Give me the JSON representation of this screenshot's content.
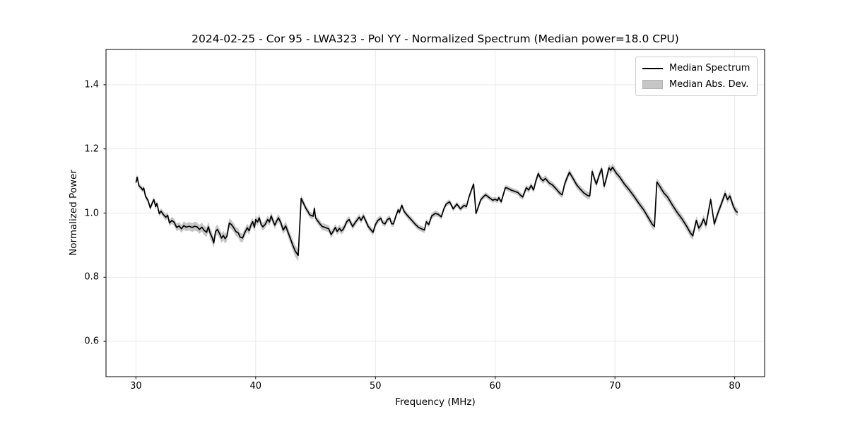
{
  "title": "2024-02-25 - Cor 95 - LWA323 - Pol YY - Normalized Spectrum (Median power=18.0 CPU)",
  "axes": {
    "xlabel": "Frequency (MHz)",
    "ylabel": "Normalized Power"
  },
  "legend": {
    "items": [
      {
        "label": "Median Spectrum",
        "type": "line",
        "color": "#000000"
      },
      {
        "label": "Median Abs. Dev.",
        "type": "patch",
        "color": "#c6c6c6"
      }
    ]
  },
  "colors": {
    "line": "#000000",
    "band": "#c6c6c6",
    "grid": "#e7e7e7",
    "spine": "#000000",
    "background": "#ffffff"
  },
  "chart_data": {
    "type": "line",
    "title": "2024-02-25 - Cor 95 - LWA323 - Pol YY - Normalized Spectrum (Median power=18.0 CPU)",
    "xlabel": "Frequency (MHz)",
    "ylabel": "Normalized Power",
    "xlim": [
      27.5,
      82.5
    ],
    "ylim": [
      0.49,
      1.51
    ],
    "xticks": [
      30,
      40,
      50,
      60,
      70,
      80
    ],
    "yticks": [
      0.6,
      0.8,
      1.0,
      1.2,
      1.4
    ],
    "xtick_labels": [
      "30",
      "40",
      "50",
      "60",
      "70",
      "80"
    ],
    "ytick_labels": [
      "0.6",
      "0.8",
      "1.0",
      "1.2",
      "1.4"
    ],
    "grid": true,
    "legend_position": "upper right",
    "series": [
      {
        "name": "Median Spectrum",
        "band_name": "Median Abs. Dev.",
        "frequency_mhz": [
          30.0,
          30.1,
          30.25,
          30.45,
          30.55,
          30.65,
          30.8,
          31.0,
          31.2,
          31.35,
          31.5,
          31.65,
          31.75,
          31.95,
          32.1,
          32.3,
          32.5,
          32.65,
          32.8,
          33.0,
          33.2,
          33.4,
          33.6,
          33.8,
          34.0,
          34.2,
          34.45,
          34.7,
          34.9,
          35.1,
          35.3,
          35.5,
          35.7,
          35.9,
          36.05,
          36.2,
          36.35,
          36.5,
          36.65,
          36.8,
          37.0,
          37.15,
          37.3,
          37.45,
          37.6,
          37.8,
          37.95,
          38.15,
          38.35,
          38.55,
          38.7,
          38.9,
          39.1,
          39.3,
          39.45,
          39.6,
          39.75,
          39.9,
          40.0,
          40.15,
          40.3,
          40.45,
          40.6,
          40.8,
          41.0,
          41.15,
          41.3,
          41.45,
          41.6,
          41.75,
          41.9,
          42.1,
          42.3,
          42.5,
          42.7,
          42.9,
          43.1,
          43.3,
          43.55,
          43.65,
          43.8,
          44.0,
          44.2,
          44.35,
          44.5,
          44.65,
          44.8,
          44.9,
          45.0,
          45.15,
          45.35,
          45.55,
          45.75,
          45.95,
          46.1,
          46.3,
          46.5,
          46.65,
          46.8,
          47.0,
          47.15,
          47.3,
          47.45,
          47.6,
          47.8,
          48.0,
          48.1,
          48.3,
          48.5,
          48.65,
          48.8,
          49.0,
          49.2,
          49.4,
          49.6,
          49.8,
          50.0,
          50.2,
          50.45,
          50.6,
          50.8,
          51.0,
          51.2,
          51.35,
          51.5,
          51.7,
          51.9,
          52.0,
          52.2,
          52.4,
          52.7,
          53.0,
          53.3,
          53.6,
          53.9,
          54.1,
          54.25,
          54.45,
          54.7,
          55.0,
          55.25,
          55.5,
          55.7,
          55.9,
          56.2,
          56.5,
          56.8,
          57.1,
          57.4,
          57.6,
          57.8,
          58.0,
          58.2,
          58.4,
          58.6,
          58.8,
          59.0,
          59.2,
          59.5,
          59.8,
          60.0,
          60.2,
          60.3,
          60.5,
          60.7,
          60.85,
          61.0,
          61.3,
          61.6,
          61.9,
          62.1,
          62.3,
          62.6,
          62.8,
          63.0,
          63.2,
          63.4,
          63.6,
          63.8,
          64.0,
          64.2,
          64.5,
          64.8,
          65.1,
          65.4,
          65.6,
          65.8,
          66.0,
          66.2,
          66.5,
          66.8,
          67.1,
          67.4,
          67.7,
          67.9,
          68.1,
          68.3,
          68.45,
          68.7,
          68.9,
          69.1,
          69.3,
          69.5,
          69.65,
          69.8,
          70.1,
          70.4,
          70.8,
          71.2,
          71.6,
          72.0,
          72.4,
          72.8,
          73.1,
          73.3,
          73.5,
          73.8,
          74.1,
          74.4,
          74.8,
          75.2,
          75.6,
          76.0,
          76.3,
          76.5,
          76.8,
          77.0,
          77.2,
          77.4,
          77.6,
          78.0,
          78.3,
          78.6,
          78.9,
          79.2,
          79.4,
          79.6,
          79.9,
          80.1,
          80.25
        ],
        "median_power": [
          1.095,
          1.112,
          1.085,
          1.078,
          1.072,
          1.078,
          1.052,
          1.04,
          1.016,
          1.03,
          1.042,
          1.02,
          1.03,
          0.998,
          1.006,
          0.995,
          0.987,
          0.993,
          0.969,
          0.977,
          0.971,
          0.955,
          0.96,
          0.951,
          0.961,
          0.956,
          0.959,
          0.955,
          0.959,
          0.957,
          0.949,
          0.956,
          0.946,
          0.94,
          0.957,
          0.937,
          0.925,
          0.907,
          0.943,
          0.949,
          0.935,
          0.922,
          0.93,
          0.92,
          0.928,
          0.969,
          0.965,
          0.955,
          0.942,
          0.938,
          0.925,
          0.922,
          0.94,
          0.954,
          0.945,
          0.962,
          0.973,
          0.955,
          0.98,
          0.972,
          0.985,
          0.965,
          0.957,
          0.965,
          0.98,
          0.972,
          0.991,
          0.975,
          0.962,
          0.975,
          0.985,
          0.97,
          0.947,
          0.96,
          0.94,
          0.92,
          0.9,
          0.882,
          0.868,
          0.94,
          1.046,
          1.03,
          1.014,
          1.006,
          0.995,
          0.992,
          0.99,
          1.015,
          0.985,
          0.977,
          0.967,
          0.958,
          0.956,
          0.953,
          0.951,
          0.933,
          0.945,
          0.955,
          0.943,
          0.952,
          0.944,
          0.949,
          0.96,
          0.973,
          0.98,
          0.965,
          0.958,
          0.97,
          0.98,
          0.987,
          0.977,
          0.991,
          0.975,
          0.958,
          0.949,
          0.94,
          0.964,
          0.977,
          0.984,
          0.97,
          0.966,
          0.98,
          0.984,
          0.967,
          0.966,
          0.99,
          1.01,
          1.002,
          1.024,
          1.005,
          0.991,
          0.979,
          0.966,
          0.955,
          0.95,
          0.947,
          0.973,
          0.964,
          0.991,
          0.999,
          0.996,
          0.988,
          1.012,
          1.028,
          1.035,
          1.013,
          1.028,
          1.013,
          1.024,
          1.02,
          1.048,
          1.07,
          1.09,
          0.999,
          1.02,
          1.042,
          1.05,
          1.057,
          1.048,
          1.04,
          1.043,
          1.039,
          1.048,
          1.035,
          1.06,
          1.079,
          1.078,
          1.072,
          1.068,
          1.064,
          1.056,
          1.05,
          1.079,
          1.072,
          1.086,
          1.072,
          1.1,
          1.123,
          1.108,
          1.101,
          1.108,
          1.094,
          1.087,
          1.075,
          1.062,
          1.057,
          1.09,
          1.11,
          1.127,
          1.108,
          1.088,
          1.075,
          1.063,
          1.055,
          1.053,
          1.13,
          1.105,
          1.09,
          1.12,
          1.138,
          1.083,
          1.11,
          1.141,
          1.133,
          1.143,
          1.125,
          1.112,
          1.09,
          1.072,
          1.052,
          1.03,
          1.01,
          0.985,
          0.966,
          0.958,
          1.097,
          1.08,
          1.062,
          1.05,
          1.025,
          1.002,
          0.982,
          0.958,
          0.938,
          0.929,
          0.977,
          0.953,
          0.963,
          0.981,
          0.962,
          1.042,
          0.966,
          1.0,
          1.03,
          1.061,
          1.042,
          1.053,
          1.02,
          1.006,
          1.002
        ],
        "median_abs_dev": [
          0.008,
          0.008,
          0.008,
          0.008,
          0.008,
          0.008,
          0.008,
          0.008,
          0.008,
          0.008,
          0.008,
          0.008,
          0.008,
          0.009,
          0.009,
          0.01,
          0.01,
          0.01,
          0.01,
          0.011,
          0.011,
          0.012,
          0.012,
          0.012,
          0.013,
          0.013,
          0.013,
          0.014,
          0.014,
          0.014,
          0.014,
          0.014,
          0.015,
          0.015,
          0.015,
          0.016,
          0.016,
          0.016,
          0.015,
          0.015,
          0.015,
          0.015,
          0.015,
          0.015,
          0.015,
          0.014,
          0.014,
          0.014,
          0.014,
          0.014,
          0.014,
          0.014,
          0.013,
          0.013,
          0.013,
          0.013,
          0.013,
          0.013,
          0.012,
          0.012,
          0.012,
          0.012,
          0.012,
          0.012,
          0.012,
          0.012,
          0.012,
          0.012,
          0.012,
          0.012,
          0.012,
          0.013,
          0.013,
          0.014,
          0.015,
          0.016,
          0.017,
          0.018,
          0.018,
          0.014,
          0.01,
          0.01,
          0.01,
          0.01,
          0.01,
          0.01,
          0.01,
          0.01,
          0.01,
          0.01,
          0.011,
          0.011,
          0.011,
          0.011,
          0.011,
          0.011,
          0.011,
          0.011,
          0.011,
          0.011,
          0.011,
          0.011,
          0.011,
          0.01,
          0.01,
          0.01,
          0.01,
          0.01,
          0.01,
          0.01,
          0.01,
          0.01,
          0.01,
          0.01,
          0.01,
          0.01,
          0.01,
          0.01,
          0.009,
          0.009,
          0.009,
          0.009,
          0.009,
          0.009,
          0.009,
          0.009,
          0.009,
          0.009,
          0.009,
          0.009,
          0.009,
          0.009,
          0.009,
          0.009,
          0.009,
          0.009,
          0.009,
          0.009,
          0.009,
          0.009,
          0.008,
          0.008,
          0.008,
          0.008,
          0.008,
          0.008,
          0.008,
          0.008,
          0.008,
          0.008,
          0.008,
          0.008,
          0.008,
          0.008,
          0.008,
          0.008,
          0.008,
          0.008,
          0.008,
          0.008,
          0.008,
          0.008,
          0.008,
          0.008,
          0.008,
          0.008,
          0.008,
          0.008,
          0.008,
          0.008,
          0.009,
          0.009,
          0.009,
          0.009,
          0.009,
          0.009,
          0.01,
          0.01,
          0.01,
          0.01,
          0.01,
          0.01,
          0.01,
          0.01,
          0.01,
          0.01,
          0.011,
          0.011,
          0.011,
          0.011,
          0.011,
          0.011,
          0.011,
          0.011,
          0.011,
          0.011,
          0.011,
          0.011,
          0.011,
          0.011,
          0.011,
          0.011,
          0.012,
          0.012,
          0.012,
          0.012,
          0.012,
          0.012,
          0.012,
          0.012,
          0.012,
          0.012,
          0.013,
          0.013,
          0.013,
          0.013,
          0.013,
          0.013,
          0.013,
          0.013,
          0.013,
          0.013,
          0.013,
          0.013,
          0.013,
          0.013,
          0.013,
          0.013,
          0.013,
          0.013,
          0.012,
          0.012,
          0.012,
          0.012,
          0.012,
          0.012,
          0.012,
          0.012,
          0.012,
          0.012
        ]
      }
    ]
  }
}
